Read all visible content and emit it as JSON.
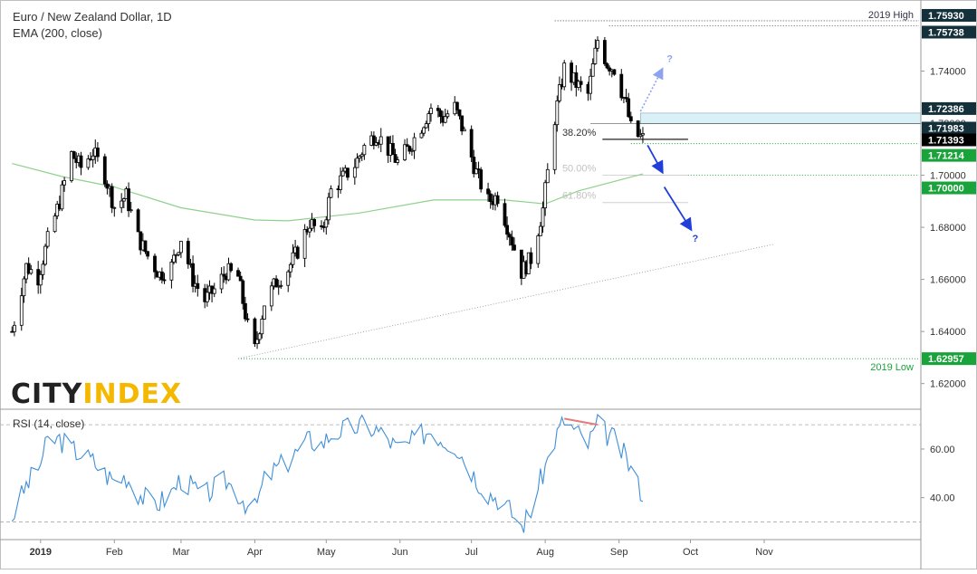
{
  "header": {
    "title": "Euro / New Zealand Dollar, 1D",
    "indicator": "EMA (200, close)"
  },
  "logo": {
    "part1": "CITY",
    "part2": "INDEX"
  },
  "rsi_panel": {
    "title": "RSI (14, close)"
  },
  "colors": {
    "candle": "#000000",
    "ema": "#8fd18c",
    "rsi": "#3f8fd8",
    "divergence": "#e27b7b",
    "green_level": "#1aa33a",
    "resistance_box": "#d8f0f6",
    "arrow_down": "#1f3fd8",
    "arrow_up": "#8ea3f0"
  },
  "chart_data": [
    {
      "type": "candlestick",
      "title": "Euro / New Zealand Dollar, 1D",
      "xlabel": "",
      "ylabel": "",
      "x_tick_labels": [
        "2019",
        "Feb",
        "Mar",
        "Apr",
        "May",
        "Jun",
        "Jul",
        "Aug",
        "Sep",
        "Oct",
        "Nov"
      ],
      "y_tick_values": [
        1.62,
        1.64,
        1.66,
        1.68,
        1.7,
        1.72,
        1.74
      ],
      "y_tick_labels": [
        "1.62000",
        "1.64000",
        "1.66000",
        "1.68000",
        "1.70000",
        "1.72000",
        "1.74000"
      ],
      "ylim": [
        1.6105,
        1.7645
      ],
      "close_anchors": [
        [
          "2018-12-20",
          1.64
        ],
        [
          "2018-12-26",
          1.665
        ],
        [
          "2018-12-31",
          1.661
        ],
        [
          "2019-01-04",
          1.675
        ],
        [
          "2019-01-09",
          1.69
        ],
        [
          "2019-01-14",
          1.708
        ],
        [
          "2019-01-18",
          1.703
        ],
        [
          "2019-01-23",
          1.709
        ],
        [
          "2019-01-28",
          1.7
        ],
        [
          "2019-02-01",
          1.688
        ],
        [
          "2019-02-06",
          1.692
        ],
        [
          "2019-02-11",
          1.676
        ],
        [
          "2019-02-15",
          1.669
        ],
        [
          "2019-02-20",
          1.662
        ],
        [
          "2019-02-25",
          1.665
        ],
        [
          "2019-03-01",
          1.676
        ],
        [
          "2019-03-06",
          1.66
        ],
        [
          "2019-03-11",
          1.652
        ],
        [
          "2019-03-15",
          1.656
        ],
        [
          "2019-03-20",
          1.663
        ],
        [
          "2019-03-25",
          1.661
        ],
        [
          "2019-03-29",
          1.642
        ],
        [
          "2019-04-01",
          1.633
        ],
        [
          "2019-04-05",
          1.651
        ],
        [
          "2019-04-10",
          1.659
        ],
        [
          "2019-04-15",
          1.664
        ],
        [
          "2019-04-19",
          1.671
        ],
        [
          "2019-04-24",
          1.682
        ],
        [
          "2019-04-29",
          1.677
        ],
        [
          "2019-05-03",
          1.694
        ],
        [
          "2019-05-08",
          1.699
        ],
        [
          "2019-05-13",
          1.704
        ],
        [
          "2019-05-17",
          1.711
        ],
        [
          "2019-05-22",
          1.716
        ],
        [
          "2019-05-27",
          1.71
        ],
        [
          "2019-05-31",
          1.705
        ],
        [
          "2019-06-05",
          1.711
        ],
        [
          "2019-06-10",
          1.719
        ],
        [
          "2019-06-14",
          1.726
        ],
        [
          "2019-06-19",
          1.722
        ],
        [
          "2019-06-24",
          1.726
        ],
        [
          "2019-06-28",
          1.716
        ],
        [
          "2019-07-03",
          1.701
        ],
        [
          "2019-07-08",
          1.69
        ],
        [
          "2019-07-12",
          1.692
        ],
        [
          "2019-07-17",
          1.678
        ],
        [
          "2019-07-22",
          1.663
        ],
        [
          "2019-07-26",
          1.668
        ],
        [
          "2019-07-31",
          1.687
        ],
        [
          "2019-08-05",
          1.722
        ],
        [
          "2019-08-09",
          1.741
        ],
        [
          "2019-08-14",
          1.735
        ],
        [
          "2019-08-19",
          1.731
        ],
        [
          "2019-08-23",
          1.752
        ],
        [
          "2019-08-27",
          1.743
        ],
        [
          "2019-08-30",
          1.741
        ],
        [
          "2019-09-04",
          1.727
        ],
        [
          "2019-09-06",
          1.718
        ],
        [
          "2019-09-09",
          1.715
        ],
        [
          "2019-09-11",
          1.714
        ]
      ],
      "series": [
        {
          "name": "EMA (200, close)",
          "type": "line",
          "points": [
            [
              "2018-12-20",
              1.7045
            ],
            [
              "2019-01-10",
              1.6995
            ],
            [
              "2019-02-01",
              1.6955
            ],
            [
              "2019-03-01",
              1.6875
            ],
            [
              "2019-04-01",
              1.6828
            ],
            [
              "2019-04-15",
              1.6825
            ],
            [
              "2019-05-15",
              1.6855
            ],
            [
              "2019-06-15",
              1.6905
            ],
            [
              "2019-07-15",
              1.6905
            ],
            [
              "2019-08-01",
              1.689
            ],
            [
              "2019-08-15",
              1.694
            ],
            [
              "2019-09-11",
              1.7005
            ]
          ]
        }
      ],
      "price_labels": [
        {
          "text": "1.75930",
          "value": 1.7593,
          "style": "dark"
        },
        {
          "text": "1.75738",
          "value": 1.75738,
          "style": "dark"
        },
        {
          "text": "1.72386",
          "value": 1.72386,
          "style": "dark"
        },
        {
          "text": "1.71983",
          "value": 1.71983,
          "style": "dark"
        },
        {
          "text": "1.71393",
          "value": 1.71393,
          "style": "black"
        },
        {
          "text": "1.71214",
          "value": 1.71214,
          "style": "green"
        },
        {
          "text": "1.70000",
          "value": 1.7,
          "style": "green"
        },
        {
          "text": "1.62957",
          "value": 1.62957,
          "style": "green"
        }
      ],
      "annotations": {
        "high_label": "2019 High",
        "high_value": 1.7593,
        "high_date": "2019-08-05",
        "low_label": "2019 Low",
        "low_value": 1.62957,
        "low_date": "2019-03-25",
        "fib_levels": [
          {
            "label": "38.20%",
            "value": 1.7138,
            "style": "dark"
          },
          {
            "label": "50.00%",
            "value": 1.7,
            "style": "faded"
          },
          {
            "label": "61.80%",
            "value": 1.6895,
            "style": "faded"
          }
        ],
        "resistance_zone": [
          1.71983,
          1.72386
        ],
        "trendline": [
          [
            "2019-03-25",
            1.62957
          ],
          [
            "2019-11-05",
            1.6735
          ]
        ],
        "question_mark": "?"
      }
    },
    {
      "type": "line",
      "title": "RSI (14, close)",
      "xlabel": "",
      "ylabel": "",
      "y_tick_values": [
        40,
        60
      ],
      "y_tick_labels": [
        "40.00",
        "60.00"
      ],
      "ylim": [
        23.5,
        76
      ],
      "bands": [
        30,
        70
      ],
      "anchors": [
        [
          "2018-12-20",
          32
        ],
        [
          "2018-12-26",
          45
        ],
        [
          "2018-12-31",
          52
        ],
        [
          "2019-01-04",
          63
        ],
        [
          "2019-01-09",
          64
        ],
        [
          "2019-01-14",
          60
        ],
        [
          "2019-01-18",
          58
        ],
        [
          "2019-01-23",
          55
        ],
        [
          "2019-01-28",
          50
        ],
        [
          "2019-02-01",
          47
        ],
        [
          "2019-02-06",
          49
        ],
        [
          "2019-02-11",
          42
        ],
        [
          "2019-02-15",
          39
        ],
        [
          "2019-02-20",
          38
        ],
        [
          "2019-02-25",
          42
        ],
        [
          "2019-03-01",
          48
        ],
        [
          "2019-03-06",
          44
        ],
        [
          "2019-03-11",
          41
        ],
        [
          "2019-03-15",
          44
        ],
        [
          "2019-03-20",
          47
        ],
        [
          "2019-03-25",
          42
        ],
        [
          "2019-03-29",
          37
        ],
        [
          "2019-04-01",
          35
        ],
        [
          "2019-04-05",
          47
        ],
        [
          "2019-04-10",
          52
        ],
        [
          "2019-04-15",
          55
        ],
        [
          "2019-04-19",
          59
        ],
        [
          "2019-04-24",
          64
        ],
        [
          "2019-04-29",
          62
        ],
        [
          "2019-05-03",
          66
        ],
        [
          "2019-05-08",
          68
        ],
        [
          "2019-05-13",
          69
        ],
        [
          "2019-05-17",
          70
        ],
        [
          "2019-05-22",
          68
        ],
        [
          "2019-05-27",
          64
        ],
        [
          "2019-05-31",
          60
        ],
        [
          "2019-06-05",
          62
        ],
        [
          "2019-06-10",
          66
        ],
        [
          "2019-06-14",
          68
        ],
        [
          "2019-06-19",
          64
        ],
        [
          "2019-06-24",
          62
        ],
        [
          "2019-06-28",
          56
        ],
        [
          "2019-07-03",
          48
        ],
        [
          "2019-07-08",
          42
        ],
        [
          "2019-07-12",
          40
        ],
        [
          "2019-07-17",
          35
        ],
        [
          "2019-07-22",
          28
        ],
        [
          "2019-07-26",
          35
        ],
        [
          "2019-07-31",
          50
        ],
        [
          "2019-08-05",
          64
        ],
        [
          "2019-08-09",
          72
        ],
        [
          "2019-08-14",
          67
        ],
        [
          "2019-08-19",
          62
        ],
        [
          "2019-08-23",
          70
        ],
        [
          "2019-08-27",
          66
        ],
        [
          "2019-08-30",
          64
        ],
        [
          "2019-09-04",
          56
        ],
        [
          "2019-09-06",
          52
        ],
        [
          "2019-09-09",
          45
        ],
        [
          "2019-09-11",
          42
        ]
      ],
      "divergence_line": [
        [
          "2019-08-09",
          72.5
        ],
        [
          "2019-08-23",
          70
        ]
      ]
    }
  ]
}
